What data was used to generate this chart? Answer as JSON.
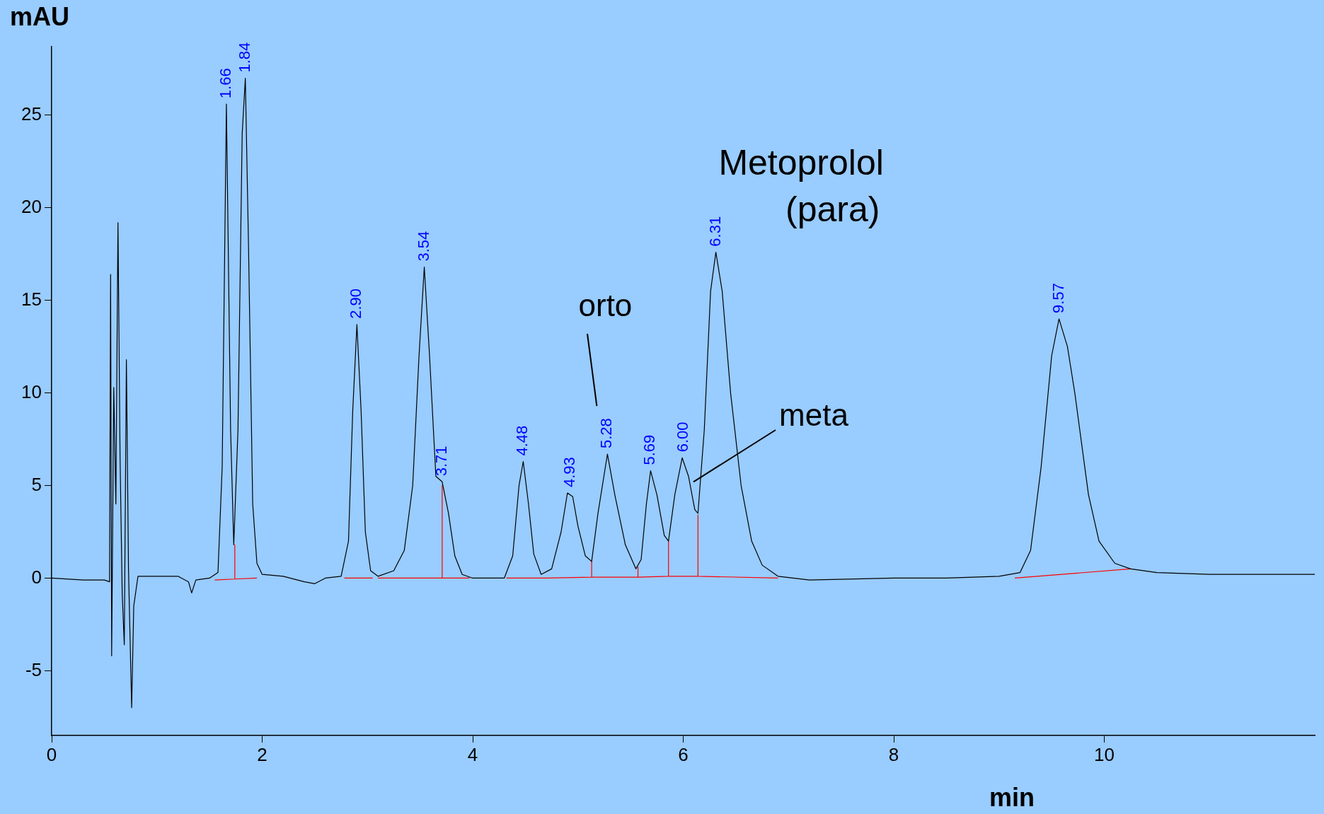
{
  "chart_data": {
    "type": "line",
    "xlabel": "min",
    "ylabel": "mAU",
    "xlim": [
      0,
      12
    ],
    "xticks": [
      0,
      2,
      4,
      6,
      8,
      10
    ],
    "ylim": [
      -8.5,
      28.7
    ],
    "yticks": [
      -5,
      0,
      5,
      10,
      15,
      20,
      25
    ],
    "grid": false,
    "legend": false,
    "marker": "none",
    "line_style": "solid",
    "series": [
      {
        "color": "#000000",
        "x": [
          0,
          0.3,
          0.5,
          0.55,
          0.56,
          0.57,
          0.59,
          0.61,
          0.63,
          0.65,
          0.67,
          0.69,
          0.71,
          0.73,
          0.76,
          0.78,
          0.82,
          1.0,
          1.2,
          1.3,
          1.33,
          1.37,
          1.5,
          1.58,
          1.62,
          1.66,
          1.7,
          1.73,
          1.77,
          1.81,
          1.84,
          1.87,
          1.91,
          1.95,
          2.0,
          2.2,
          2.4,
          2.5,
          2.6,
          2.75,
          2.82,
          2.86,
          2.9,
          2.94,
          2.98,
          3.03,
          3.1,
          3.25,
          3.35,
          3.43,
          3.49,
          3.54,
          3.59,
          3.65,
          3.71,
          3.77,
          3.83,
          3.9,
          4.0,
          4.3,
          4.38,
          4.44,
          4.48,
          4.53,
          4.58,
          4.65,
          4.75,
          4.84,
          4.9,
          4.95,
          5.0,
          5.07,
          5.13,
          5.19,
          5.28,
          5.35,
          5.45,
          5.55,
          5.6,
          5.65,
          5.69,
          5.75,
          5.82,
          5.86,
          5.92,
          5.99,
          6.05,
          6.11,
          6.14,
          6.2,
          6.26,
          6.31,
          6.37,
          6.45,
          6.55,
          6.65,
          6.75,
          6.9,
          7.2,
          8.0,
          8.5,
          9.0,
          9.2,
          9.3,
          9.4,
          9.5,
          9.57,
          9.65,
          9.72,
          9.85,
          9.95,
          10.1,
          10.25,
          10.5,
          11.0,
          11.5,
          12.0
        ],
        "values": [
          0,
          -0.1,
          -0.1,
          -0.2,
          16.4,
          -4.2,
          10.3,
          4,
          19.2,
          6.5,
          -0.8,
          -3.6,
          11.8,
          0.5,
          -7.0,
          -1.5,
          0.1,
          0.1,
          0.1,
          -0.2,
          -0.8,
          -0.1,
          0,
          0.3,
          6,
          25.6,
          8,
          1.8,
          8,
          24,
          27,
          18,
          4,
          0.8,
          0.2,
          0.1,
          -0.2,
          -0.3,
          0,
          0.1,
          2,
          9,
          13.7,
          9,
          2.5,
          0.4,
          0.1,
          0.4,
          1.5,
          5,
          12,
          16.8,
          12,
          5.5,
          5.2,
          3.5,
          1.2,
          0.2,
          0,
          0,
          1.2,
          5,
          6.3,
          4,
          1.3,
          0.2,
          0.5,
          2.5,
          4.6,
          4.4,
          2.8,
          1.2,
          0.9,
          3.5,
          6.7,
          4.5,
          1.8,
          0.5,
          1.0,
          4,
          5.8,
          4.5,
          2.3,
          2.0,
          4.5,
          6.5,
          5.5,
          3.7,
          3.5,
          8,
          15.5,
          17.6,
          15.5,
          10,
          5,
          2,
          0.7,
          0.1,
          -0.1,
          0,
          0,
          0.1,
          0.3,
          1.5,
          6,
          12,
          14,
          12.5,
          10,
          4.5,
          2,
          0.8,
          0.5,
          0.3,
          0.2,
          0.2,
          0.2
        ]
      },
      {
        "color": "#ff0000",
        "x": [
          1.55,
          1.74,
          1.74,
          1.74,
          1.95,
          1.96,
          2.78,
          3.05,
          3.06,
          3.1,
          3.71,
          3.71,
          3.71,
          3.97,
          3.98,
          4.32,
          4.7,
          5.13,
          5.13,
          5.13,
          5.57,
          5.57,
          5.57,
          5.86,
          5.86,
          5.86,
          6.14,
          6.14,
          6.14,
          6.9,
          6.91,
          9.15,
          10.25
        ],
        "values": [
          -0.1,
          -0.05,
          1.8,
          -0.05,
          0,
          null,
          0,
          0,
          null,
          0,
          0,
          5.0,
          0,
          0,
          null,
          0,
          0,
          0.05,
          0.9,
          0.05,
          0.05,
          0.6,
          0.05,
          0.1,
          2.0,
          0.1,
          0.1,
          3.4,
          0.1,
          0,
          null,
          0,
          0.5
        ]
      }
    ],
    "annotations": [
      {
        "text": "1.66",
        "x": 1.66,
        "y": 25.6
      },
      {
        "text": "1.84",
        "x": 1.84,
        "y": 27
      },
      {
        "text": "2.90",
        "x": 2.9,
        "y": 13.7
      },
      {
        "text": "3.54",
        "x": 3.54,
        "y": 16.8
      },
      {
        "text": "3.71",
        "x": 3.71,
        "y": 5.2
      },
      {
        "text": "4.48",
        "x": 4.48,
        "y": 6.3
      },
      {
        "text": "4.93",
        "x": 4.93,
        "y": 4.6
      },
      {
        "text": "5.28",
        "x": 5.28,
        "y": 6.7
      },
      {
        "text": "5.69",
        "x": 5.69,
        "y": 5.8
      },
      {
        "text": "6.00",
        "x": 6.0,
        "y": 6.5
      },
      {
        "text": "6.31",
        "x": 6.31,
        "y": 17.6
      },
      {
        "text": "9.57",
        "x": 9.57,
        "y": 14
      },
      "Metoprolol",
      "(para)",
      "orto",
      "meta"
    ]
  }
}
